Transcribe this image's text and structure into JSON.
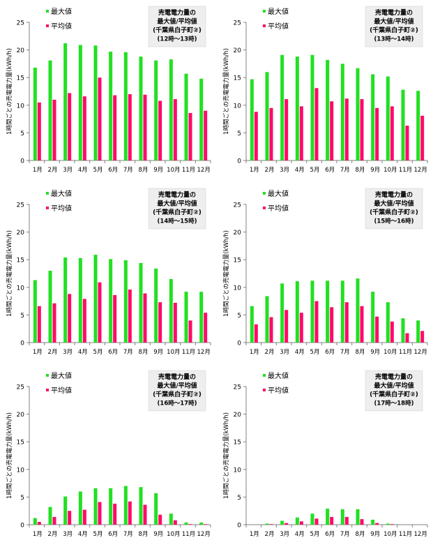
{
  "colors": {
    "max": "#22e022",
    "avg": "#ff0a6a",
    "axis": "#808080",
    "info_bg": "#eeeeee"
  },
  "chart_data": [
    {
      "type": "bar",
      "title": [
        "売電電力量の",
        "最大値/平均値",
        "(千葉県白子町②)",
        "(12時～13時)"
      ],
      "ylabel": "1時間ごとの売電電力量(kWh/h)",
      "ylim": [
        0,
        25
      ],
      "yticks": [
        "0",
        "5",
        "10",
        "15",
        "20",
        "25"
      ],
      "categories": [
        "1月",
        "2月",
        "3月",
        "4月",
        "5月",
        "6月",
        "7月",
        "8月",
        "9月",
        "10月",
        "11月",
        "12月"
      ],
      "legend": "top-left",
      "grid": false,
      "series": [
        {
          "name": "最大値",
          "values": [
            16.8,
            18.1,
            21.2,
            20.9,
            20.8,
            19.7,
            19.6,
            18.8,
            18.1,
            18.3,
            15.7,
            14.8
          ]
        },
        {
          "name": "平均値",
          "values": [
            10.5,
            11.0,
            12.2,
            11.6,
            15.0,
            11.8,
            12.0,
            11.9,
            10.8,
            11.1,
            8.6,
            9.0
          ]
        }
      ]
    },
    {
      "type": "bar",
      "title": [
        "売電電力量の",
        "最大値/平均値",
        "(千葉県白子町②)",
        "(13時～14時)"
      ],
      "ylabel": "1時間ごとの売電電力量(kWh/h)",
      "ylim": [
        0,
        25
      ],
      "yticks": [
        "0",
        "5",
        "10",
        "15",
        "20",
        "25"
      ],
      "categories": [
        "1月",
        "2月",
        "3月",
        "4月",
        "5月",
        "6月",
        "7月",
        "8月",
        "9月",
        "10月",
        "11月",
        "12月"
      ],
      "legend": "top-left",
      "grid": false,
      "series": [
        {
          "name": "最大値",
          "values": [
            14.7,
            16.0,
            19.1,
            18.8,
            19.1,
            18.2,
            17.5,
            16.7,
            15.6,
            15.2,
            12.8,
            12.6
          ]
        },
        {
          "name": "平均値",
          "values": [
            8.8,
            9.5,
            11.1,
            9.8,
            13.1,
            10.7,
            11.2,
            11.1,
            9.5,
            9.8,
            6.3,
            8.1
          ]
        }
      ]
    },
    {
      "type": "bar",
      "title": [
        "売電電力量の",
        "最大値/平均値",
        "(千葉県白子町②)",
        "(14時～15時)"
      ],
      "ylabel": "1時間ごとの売電電力量(kWh/h)",
      "ylim": [
        0,
        25
      ],
      "yticks": [
        "0",
        "5",
        "10",
        "15",
        "20",
        "25"
      ],
      "categories": [
        "1月",
        "2月",
        "3月",
        "4月",
        "5月",
        "6月",
        "7月",
        "8月",
        "9月",
        "10月",
        "11月",
        "12月"
      ],
      "legend": "top-left",
      "grid": false,
      "series": [
        {
          "name": "最大値",
          "values": [
            11.3,
            13.0,
            15.4,
            15.3,
            15.9,
            15.1,
            14.9,
            14.4,
            13.4,
            11.5,
            9.2,
            9.2
          ]
        },
        {
          "name": "平均値",
          "values": [
            6.6,
            7.1,
            8.8,
            7.9,
            10.9,
            8.6,
            9.6,
            8.9,
            7.3,
            7.2,
            4.0,
            5.4
          ]
        }
      ]
    },
    {
      "type": "bar",
      "title": [
        "売電電力量の",
        "最大値/平均値",
        "(千葉県白子町②)",
        "(15時～16時)"
      ],
      "ylabel": "1時間ごとの売電電力量(kWh/h)",
      "ylim": [
        0,
        25
      ],
      "yticks": [
        "0",
        "5",
        "10",
        "15",
        "20",
        "25"
      ],
      "categories": [
        "1月",
        "2月",
        "3月",
        "4月",
        "5月",
        "6月",
        "7月",
        "8月",
        "9月",
        "10月",
        "11月",
        "12月"
      ],
      "legend": "top-left",
      "grid": false,
      "series": [
        {
          "name": "最大値",
          "values": [
            6.6,
            8.4,
            10.7,
            11.1,
            11.2,
            11.2,
            11.2,
            11.6,
            9.2,
            7.3,
            4.4,
            4.0
          ]
        },
        {
          "name": "平均値",
          "values": [
            3.3,
            4.6,
            5.9,
            5.4,
            7.5,
            6.4,
            7.3,
            6.6,
            4.7,
            3.8,
            1.7,
            2.1
          ]
        }
      ]
    },
    {
      "type": "bar",
      "title": [
        "売電電力量の",
        "最大値/平均値",
        "(千葉県白子町②)",
        "(16時～17時)"
      ],
      "ylabel": "1時間ごとの売電電力量(kWh/h)",
      "ylim": [
        0,
        25
      ],
      "yticks": [
        "0",
        "5",
        "10",
        "15",
        "20",
        "25"
      ],
      "categories": [
        "1月",
        "2月",
        "3月",
        "4月",
        "5月",
        "6月",
        "7月",
        "8月",
        "9月",
        "10月",
        "11月",
        "12月"
      ],
      "legend": "top-left",
      "grid": false,
      "series": [
        {
          "name": "最大値",
          "values": [
            1.2,
            3.2,
            5.1,
            6.0,
            6.6,
            6.6,
            7.0,
            6.8,
            5.7,
            2.0,
            0.4,
            0.4
          ]
        },
        {
          "name": "平均値",
          "values": [
            0.5,
            1.4,
            2.5,
            2.7,
            4.1,
            3.8,
            4.2,
            3.6,
            1.8,
            0.8,
            0.1,
            0.1
          ]
        }
      ]
    },
    {
      "type": "bar",
      "title": [
        "売電電力量の",
        "最大値/平均値",
        "(千葉県白子町②)",
        "(17時～18時)"
      ],
      "ylabel": "1時間ごとの売電電力量(kWh/h)",
      "ylim": [
        0,
        25
      ],
      "yticks": [
        "0",
        "5",
        "10",
        "15",
        "20",
        "25"
      ],
      "categories": [
        "1月",
        "2月",
        "3月",
        "4月",
        "5月",
        "6月",
        "7月",
        "8月",
        "9月",
        "10月",
        "11月",
        "12月"
      ],
      "legend": "top-left",
      "grid": false,
      "series": [
        {
          "name": "最大値",
          "values": [
            0.0,
            0.2,
            0.7,
            1.3,
            2.0,
            2.9,
            2.8,
            2.8,
            0.9,
            0.2,
            0.0,
            0.0
          ]
        },
        {
          "name": "平均値",
          "values": [
            0.0,
            0.1,
            0.3,
            0.6,
            1.1,
            1.4,
            1.4,
            1.0,
            0.3,
            0.1,
            0.0,
            0.0
          ]
        }
      ]
    }
  ]
}
